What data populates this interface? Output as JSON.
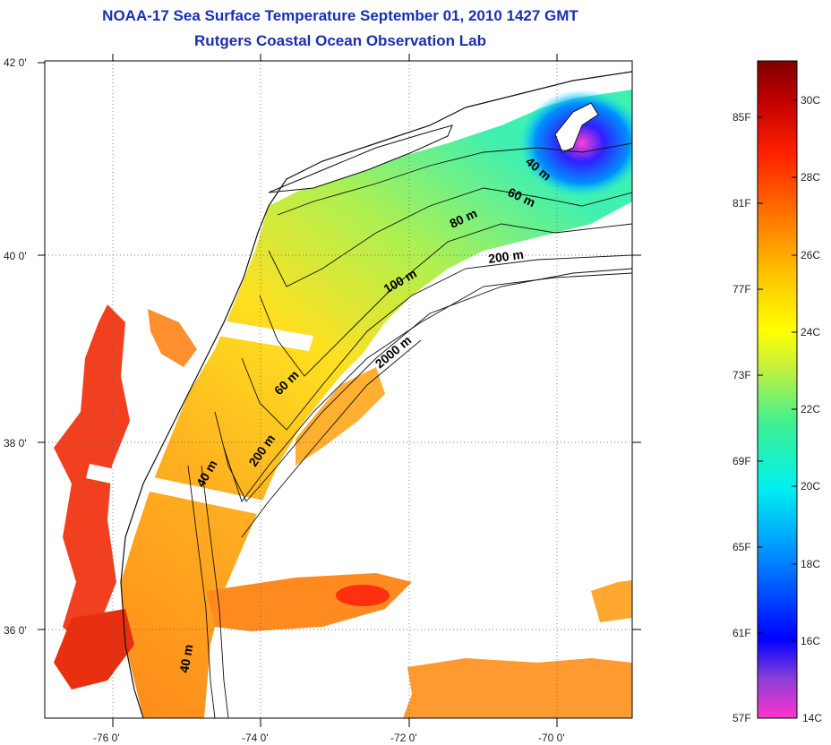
{
  "title": {
    "line1": "NOAA-17 Sea Surface Temperature September 01, 2010 1427 GMT",
    "line2": "Rutgers Coastal Ocean Observation Lab"
  },
  "map": {
    "lon_ticks": [
      "-76 0'",
      "-74 0'",
      "-72 0'",
      "-70 0'"
    ],
    "lat_ticks": [
      "42 0'",
      "40 0'",
      "38 0'",
      "36 0'"
    ],
    "depth_labels": [
      "40 m",
      "60 m",
      "80 m",
      "200 m",
      "100 m",
      "2000 m",
      "60 m",
      "200 m",
      "40 m",
      "40 m"
    ]
  },
  "colorbar": {
    "fahrenheit": [
      "85F",
      "81F",
      "77F",
      "73F",
      "69F",
      "65F",
      "61F",
      "57F"
    ],
    "celsius": [
      "30C",
      "28C",
      "26C",
      "24C",
      "22C",
      "20C",
      "18C",
      "16C",
      "14C"
    ],
    "colors": [
      "#ff33cc",
      "#6f2fd0",
      "#0000ff",
      "#0090ff",
      "#00f0f0",
      "#40f090",
      "#c0f040",
      "#ffff00",
      "#ffc000",
      "#ff7000",
      "#ff2000",
      "#c00000",
      "#800000"
    ]
  },
  "colors": {
    "land": "#ffffff",
    "title": "#1a2fb0",
    "coast": "#111111"
  }
}
